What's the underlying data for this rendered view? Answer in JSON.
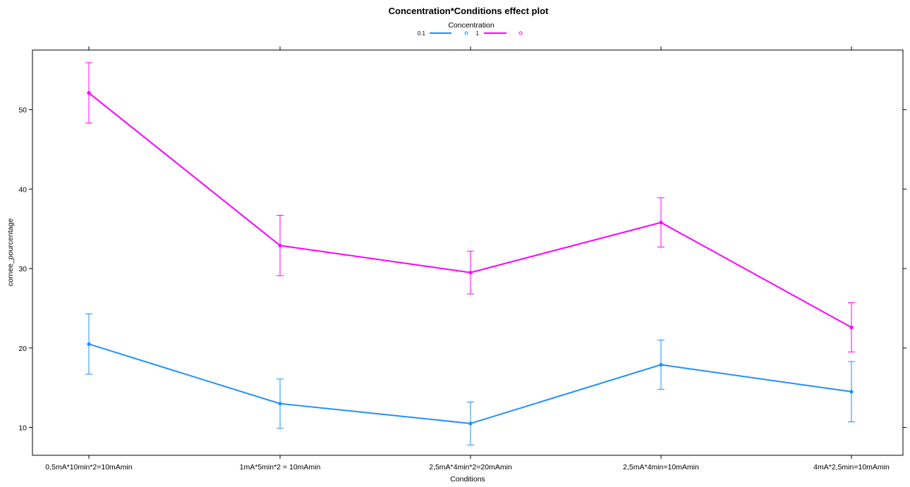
{
  "chart_data": {
    "type": "line",
    "title": "Concentration*Conditions effect plot",
    "xlabel": "Conditions",
    "ylabel": "cornee_pourcentage",
    "legend": {
      "title": "Concentration",
      "placement": "top-center"
    },
    "categories": [
      "0,5mA*10min*2=10mAmin",
      "1mA*5min*2 = 10mAmin",
      "2,5mA*4min*2=20mAmin",
      "2,5mA*4min=10mAmin",
      "4mA*2,5min=10mAmin"
    ],
    "ylim": [
      6.5,
      57.5
    ],
    "yticks": [
      10,
      20,
      30,
      40,
      50
    ],
    "grid": false,
    "series": [
      {
        "name": "0.1",
        "color": "#1E90FF",
        "values": [
          20.5,
          13.0,
          10.5,
          17.9,
          14.5
        ],
        "lower": [
          16.7,
          9.9,
          7.8,
          14.8,
          10.7
        ],
        "upper": [
          24.3,
          16.1,
          13.2,
          21.0,
          18.3
        ]
      },
      {
        "name": "1",
        "color": "#FF00FF",
        "values": [
          52.1,
          32.9,
          29.5,
          35.8,
          22.6
        ],
        "lower": [
          48.3,
          29.1,
          26.8,
          32.7,
          19.5
        ],
        "upper": [
          55.9,
          36.7,
          32.2,
          38.9,
          25.7
        ]
      }
    ]
  }
}
